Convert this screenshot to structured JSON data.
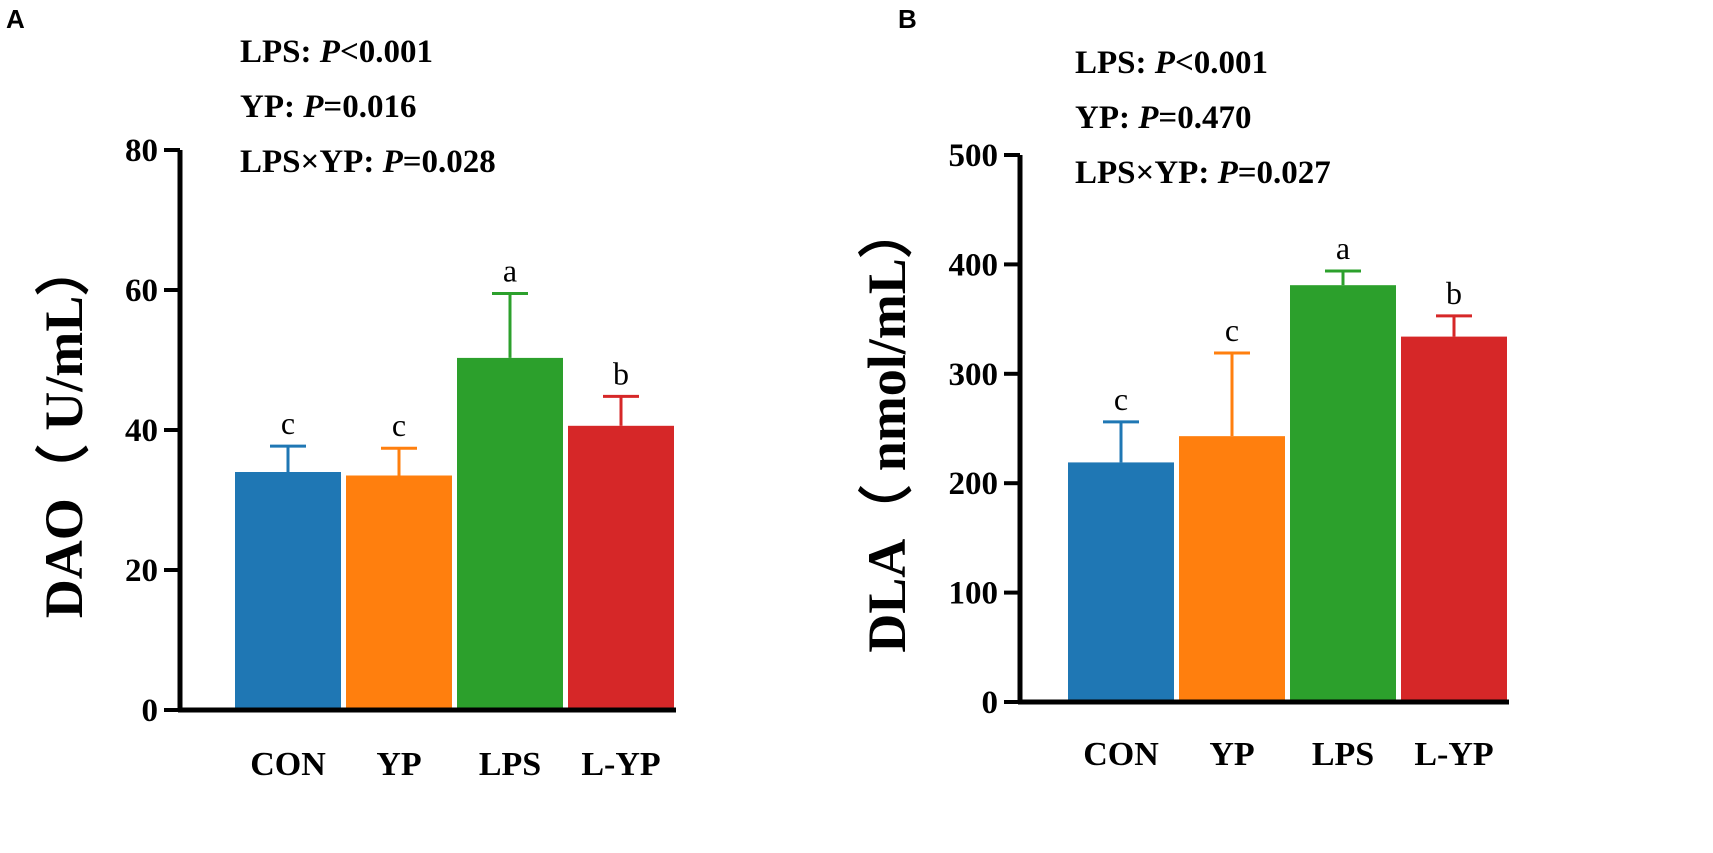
{
  "chart_data": [
    {
      "panel": "A",
      "type": "bar",
      "ylabel": "DAO（ U/mL）",
      "ylim": [
        0,
        80
      ],
      "yticks": [
        0,
        20,
        40,
        60,
        80
      ],
      "categories": [
        "CON",
        "YP",
        "LPS",
        "L-YP"
      ],
      "values": [
        34,
        33.5,
        50.3,
        40.6
      ],
      "errors": [
        3.7,
        3.9,
        9.2,
        4.2
      ],
      "significance": [
        "c",
        "c",
        "a",
        "b"
      ],
      "colors": [
        "#1f77b4",
        "#ff7f0e",
        "#2ca02c",
        "#d62728"
      ],
      "stats": [
        {
          "label": "LPS: ",
          "p": "P",
          "value": "<0.001"
        },
        {
          "label": "YP: ",
          "p": "P",
          "value": "=0.016"
        },
        {
          "label": "LPS×YP: ",
          "p": "P",
          "value": "=0.028"
        }
      ]
    },
    {
      "panel": "B",
      "type": "bar",
      "ylabel": "DLA（ nmol/mL）",
      "ylim": [
        0,
        500
      ],
      "yticks": [
        0,
        100,
        200,
        300,
        400,
        500
      ],
      "categories": [
        "CON",
        "YP",
        "LPS",
        "L-YP"
      ],
      "values": [
        219,
        243,
        381,
        334
      ],
      "errors": [
        37,
        76,
        13,
        19
      ],
      "significance": [
        "c",
        "c",
        "a",
        "b"
      ],
      "colors": [
        "#1f77b4",
        "#ff7f0e",
        "#2ca02c",
        "#d62728"
      ],
      "stats": [
        {
          "label": "LPS: ",
          "p": "P",
          "value": "<0.001"
        },
        {
          "label": "YP: ",
          "p": "P",
          "value": "=0.470"
        },
        {
          "label": "LPS×YP: ",
          "p": "P",
          "value": "=0.027"
        }
      ]
    }
  ]
}
